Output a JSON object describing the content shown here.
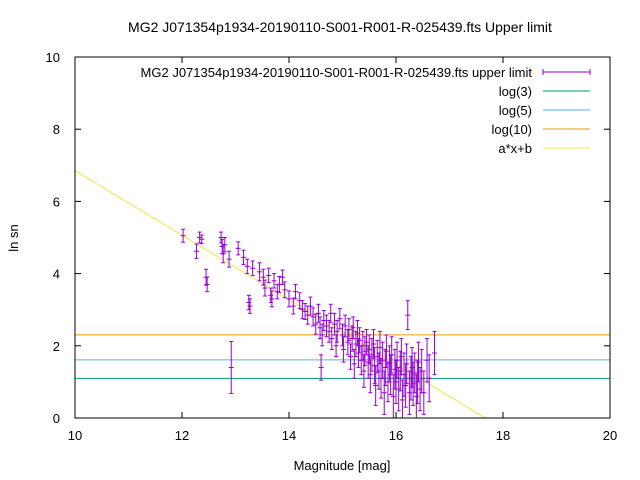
{
  "chart_data": {
    "type": "scatter",
    "title": "MG2 J071354p1934-20190110-S001-R001-R-025439.fts Upper limit",
    "xlabel": "Magnitude [mag]",
    "ylabel": "ln sn",
    "xlim": [
      10,
      20
    ],
    "ylim": [
      0,
      10
    ],
    "x_ticks": [
      "10",
      "12",
      "14",
      "16",
      "18",
      "20"
    ],
    "y_ticks": [
      "0",
      "2",
      "4",
      "6",
      "8",
      "10"
    ],
    "grid": false,
    "legend_position": "top-right",
    "colors": {
      "points": "#9400d3",
      "log3": "#009e73",
      "log5": "#56b4e9",
      "log10": "#e69f00",
      "fit": "#f0e442"
    },
    "legend": [
      {
        "label": "MG2 J071354p1934-20190110-S001-R001-R-025439.fts upper limit",
        "style": "errorbar",
        "color": "#9400d3"
      },
      {
        "label": "log(3)",
        "style": "line",
        "color": "#009e73"
      },
      {
        "label": "log(5)",
        "style": "line",
        "color": "#56b4e9"
      },
      {
        "label": "log(10)",
        "style": "line",
        "color": "#e69f00"
      },
      {
        "label": "a*x+b",
        "style": "line",
        "color": "#f0e442"
      }
    ],
    "hlines": [
      {
        "name": "log(3)",
        "y": 1.0986,
        "color": "#009e73"
      },
      {
        "name": "log(5)",
        "y": 1.6094,
        "color": "#56b4e9"
      },
      {
        "name": "log(10)",
        "y": 2.3026,
        "color": "#e69f00"
      }
    ],
    "fit_line": {
      "name": "a*x+b",
      "points": [
        [
          10,
          6.85
        ],
        [
          17.67,
          0
        ]
      ],
      "color": "#f0e442"
    },
    "series": [
      {
        "name": "MG2 J071354p1934-20190110-S001-R001-R-025439.fts upper limit",
        "points": [
          [
            12.02,
            5.05,
            0.18
          ],
          [
            12.27,
            4.62,
            0.2
          ],
          [
            12.33,
            5.0,
            0.15
          ],
          [
            12.37,
            4.95,
            0.12
          ],
          [
            12.45,
            3.9,
            0.22
          ],
          [
            12.47,
            3.7,
            0.2
          ],
          [
            12.73,
            5.0,
            0.15
          ],
          [
            12.75,
            4.75,
            0.2
          ],
          [
            12.77,
            4.55,
            0.25
          ],
          [
            12.8,
            4.8,
            0.2
          ],
          [
            12.88,
            4.4,
            0.22
          ],
          [
            12.92,
            1.4,
            0.72
          ],
          [
            13.05,
            4.7,
            0.18
          ],
          [
            13.15,
            4.45,
            0.2
          ],
          [
            13.22,
            4.2,
            0.2
          ],
          [
            13.25,
            3.2,
            0.2
          ],
          [
            13.27,
            3.1,
            0.2
          ],
          [
            13.32,
            4.15,
            0.2
          ],
          [
            13.45,
            4.05,
            0.25
          ],
          [
            13.52,
            3.9,
            0.22
          ],
          [
            13.55,
            3.6,
            0.22
          ],
          [
            13.62,
            3.95,
            0.2
          ],
          [
            13.66,
            3.4,
            0.2
          ],
          [
            13.68,
            3.3,
            0.22
          ],
          [
            13.72,
            3.8,
            0.2
          ],
          [
            13.78,
            3.5,
            0.2
          ],
          [
            13.82,
            3.7,
            0.22
          ],
          [
            13.88,
            3.9,
            0.2
          ],
          [
            13.92,
            3.55,
            0.22
          ],
          [
            14.0,
            3.3,
            0.22
          ],
          [
            14.08,
            3.1,
            0.22
          ],
          [
            14.12,
            3.5,
            0.2
          ],
          [
            14.2,
            3.25,
            0.22
          ],
          [
            14.25,
            3.0,
            0.25
          ],
          [
            14.3,
            2.95,
            0.22
          ],
          [
            14.35,
            2.85,
            0.25
          ],
          [
            14.4,
            3.1,
            0.25
          ],
          [
            14.45,
            2.8,
            0.25
          ],
          [
            14.5,
            2.6,
            0.28
          ],
          [
            14.55,
            2.9,
            0.25
          ],
          [
            14.58,
            2.5,
            0.3
          ],
          [
            14.6,
            1.4,
            0.35
          ],
          [
            14.62,
            2.3,
            0.3
          ],
          [
            14.65,
            2.7,
            0.28
          ],
          [
            14.7,
            2.55,
            0.3
          ],
          [
            14.75,
            2.4,
            0.3
          ],
          [
            14.78,
            2.9,
            0.25
          ],
          [
            14.8,
            2.2,
            0.3
          ],
          [
            14.85,
            2.6,
            0.3
          ],
          [
            14.88,
            2.0,
            0.3
          ],
          [
            14.9,
            2.4,
            0.3
          ],
          [
            14.95,
            2.75,
            0.28
          ],
          [
            15.0,
            2.3,
            0.3
          ],
          [
            15.02,
            1.9,
            0.35
          ],
          [
            15.05,
            2.55,
            0.3
          ],
          [
            15.1,
            2.1,
            0.35
          ],
          [
            15.12,
            2.45,
            0.3
          ],
          [
            15.15,
            1.7,
            0.35
          ],
          [
            15.18,
            2.2,
            0.35
          ],
          [
            15.2,
            2.5,
            0.3
          ],
          [
            15.22,
            1.5,
            0.4
          ],
          [
            15.25,
            2.05,
            0.35
          ],
          [
            15.28,
            2.35,
            0.35
          ],
          [
            15.3,
            1.8,
            0.4
          ],
          [
            15.32,
            2.15,
            0.35
          ],
          [
            15.35,
            1.6,
            0.4
          ],
          [
            15.38,
            2.0,
            0.4
          ],
          [
            15.4,
            1.3,
            0.45
          ],
          [
            15.42,
            1.85,
            0.4
          ],
          [
            15.45,
            2.1,
            0.35
          ],
          [
            15.48,
            1.55,
            0.45
          ],
          [
            15.5,
            1.9,
            0.4
          ],
          [
            15.52,
            1.2,
            0.5
          ],
          [
            15.55,
            1.75,
            0.45
          ],
          [
            15.58,
            2.05,
            0.4
          ],
          [
            15.6,
            1.45,
            0.5
          ],
          [
            15.62,
            0.9,
            0.55
          ],
          [
            15.65,
            1.7,
            0.45
          ],
          [
            15.68,
            1.3,
            0.5
          ],
          [
            15.7,
            1.95,
            0.45
          ],
          [
            15.72,
            1.1,
            0.55
          ],
          [
            15.75,
            1.6,
            0.5
          ],
          [
            15.78,
            0.7,
            0.6
          ],
          [
            15.8,
            1.4,
            0.5
          ],
          [
            15.82,
            1.85,
            0.45
          ],
          [
            15.85,
            1.0,
            0.55
          ],
          [
            15.88,
            1.5,
            0.5
          ],
          [
            15.9,
            1.2,
            0.55
          ],
          [
            15.92,
            1.75,
            0.5
          ],
          [
            15.95,
            0.6,
            0.6
          ],
          [
            15.98,
            1.35,
            0.55
          ],
          [
            16.0,
            1.0,
            0.6
          ],
          [
            16.02,
            1.6,
            0.5
          ],
          [
            16.05,
            0.8,
            0.6
          ],
          [
            16.08,
            1.3,
            0.55
          ],
          [
            16.1,
            1.7,
            0.5
          ],
          [
            16.12,
            0.5,
            0.55
          ],
          [
            16.15,
            1.2,
            0.6
          ],
          [
            16.18,
            0.9,
            0.6
          ],
          [
            16.2,
            1.5,
            0.55
          ],
          [
            16.22,
            2.85,
            0.4
          ],
          [
            16.25,
            0.7,
            0.6
          ],
          [
            16.28,
            1.1,
            0.6
          ],
          [
            16.3,
            1.4,
            0.55
          ],
          [
            16.32,
            0.95,
            0.6
          ],
          [
            16.35,
            1.25,
            0.55
          ],
          [
            16.38,
            0.6,
            0.6
          ],
          [
            16.4,
            1.0,
            0.6
          ],
          [
            16.42,
            1.55,
            0.55
          ],
          [
            16.45,
            0.8,
            0.6
          ],
          [
            16.48,
            1.3,
            0.6
          ],
          [
            16.52,
            0.7,
            0.6
          ],
          [
            16.58,
            1.6,
            0.6
          ],
          [
            16.62,
            1.1,
            0.65
          ],
          [
            16.72,
            1.8,
            0.6
          ]
        ]
      }
    ]
  }
}
